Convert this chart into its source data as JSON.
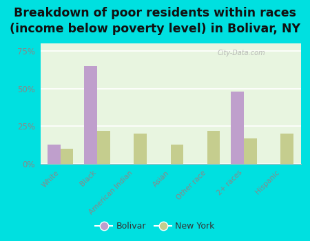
{
  "title": "Breakdown of poor residents within races\n(income below poverty level) in Bolivar, NY",
  "categories": [
    "White",
    "Black",
    "American Indian",
    "Asian",
    "Other race",
    "2+ races",
    "Hispanic"
  ],
  "bolivar_values": [
    13.0,
    65.0,
    0.0,
    0.0,
    0.0,
    48.0,
    0.0
  ],
  "ny_values": [
    10.0,
    22.0,
    20.0,
    13.0,
    22.0,
    17.0,
    20.0
  ],
  "bolivar_color": "#bf9fcc",
  "ny_color": "#c5cd8e",
  "plot_bg_top": "#f0faf0",
  "plot_bg_bottom": "#e8f5e0",
  "outer_background": "#00e0e0",
  "ylim": [
    0,
    80
  ],
  "yticks": [
    0,
    25,
    50,
    75
  ],
  "ytick_labels": [
    "0%",
    "25%",
    "50%",
    "75%"
  ],
  "title_fontsize": 12.5,
  "bar_width": 0.35,
  "legend_bolivar": "Bolivar",
  "legend_ny": "New York",
  "grid_color": "#ffffff",
  "tick_color": "#888888",
  "watermark": "City-Data.com"
}
